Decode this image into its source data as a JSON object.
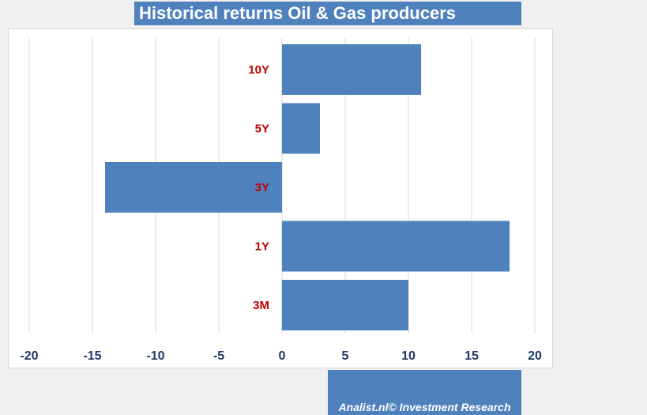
{
  "header": {
    "title": "Historical returns Oil & Gas producers"
  },
  "footer": {
    "credit": "Analist.nl© Investment Research"
  },
  "colors": {
    "bar": "#4f81bd",
    "category_label": "#c00000",
    "tick_label": "#1f3864",
    "grid": "#d9d9d9"
  },
  "chart_data": {
    "type": "bar",
    "orientation": "horizontal",
    "title": "Historical returns Oil & Gas producers",
    "categories": [
      "10Y",
      "5Y",
      "3Y",
      "1Y",
      "3M"
    ],
    "values": [
      11,
      3,
      -14,
      18,
      10
    ],
    "xlim": [
      -20,
      20
    ],
    "xticks": [
      "-20",
      "-15",
      "-10",
      "-5",
      "0",
      "5",
      "10",
      "15",
      "20"
    ],
    "grid": "vertical",
    "legend": "none"
  }
}
